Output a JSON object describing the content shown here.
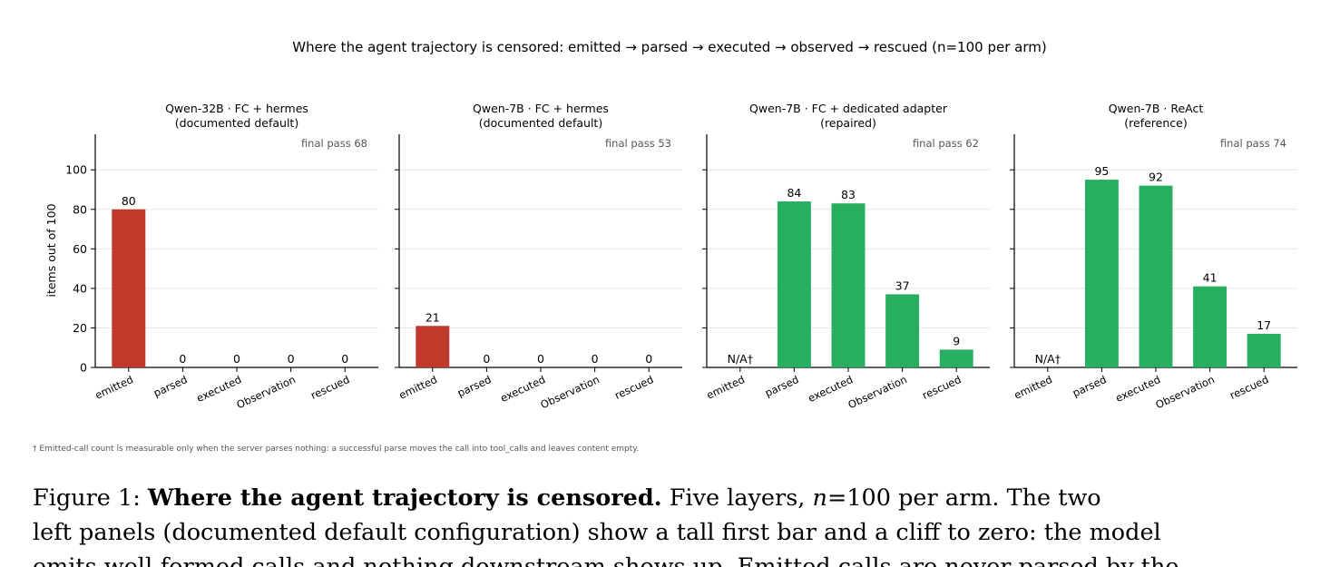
{
  "figure": {
    "suptitle": "Where the agent trajectory is censored: emitted → parsed → executed → observed → rescued   (n=100 per arm)",
    "ylabel": "items out of 100",
    "footnote": "† Emitted-call count is measurable only when the server parses nothing: a successful parse moves the call into tool_calls and leaves content empty.",
    "colors": {
      "emitted_bar": "#c0392b",
      "downstream_bar": "#27ae60",
      "grid": "#e6e6e6",
      "note": "#555555"
    }
  },
  "chart_data": [
    {
      "type": "bar",
      "title": "Qwen-32B · FC + hermes",
      "subtitle": "(documented default)",
      "annotation": "final pass 68",
      "categories": [
        "emitted",
        "parsed",
        "executed",
        "Observation",
        "rescued"
      ],
      "values": [
        80,
        0,
        0,
        0,
        0
      ],
      "labels": [
        "80",
        "0",
        "0",
        "0",
        "0"
      ],
      "ylim": [
        0,
        118
      ],
      "yticks": [
        0,
        20,
        40,
        60,
        80,
        100
      ],
      "ylabel": "items out of 100",
      "grid": "horizontal"
    },
    {
      "type": "bar",
      "title": "Qwen-7B · FC + hermes",
      "subtitle": "(documented default)",
      "annotation": "final pass 53",
      "categories": [
        "emitted",
        "parsed",
        "executed",
        "Observation",
        "rescued"
      ],
      "values": [
        21,
        0,
        0,
        0,
        0
      ],
      "labels": [
        "21",
        "0",
        "0",
        "0",
        "0"
      ],
      "ylim": [
        0,
        118
      ],
      "yticks": [
        0,
        20,
        40,
        60,
        80,
        100
      ],
      "grid": "horizontal"
    },
    {
      "type": "bar",
      "title": "Qwen-7B · FC + dedicated adapter",
      "subtitle": "(repaired)",
      "annotation": "final pass 62",
      "categories": [
        "emitted",
        "parsed",
        "executed",
        "Observation",
        "rescued"
      ],
      "values": [
        null,
        84,
        83,
        37,
        9
      ],
      "labels": [
        "N/A†",
        "84",
        "83",
        "37",
        "9"
      ],
      "ylim": [
        0,
        118
      ],
      "yticks": [
        0,
        20,
        40,
        60,
        80,
        100
      ],
      "grid": "horizontal"
    },
    {
      "type": "bar",
      "title": "Qwen-7B · ReAct",
      "subtitle": "(reference)",
      "annotation": "final pass 74",
      "categories": [
        "emitted",
        "parsed",
        "executed",
        "Observation",
        "rescued"
      ],
      "values": [
        null,
        95,
        92,
        41,
        17
      ],
      "labels": [
        "N/A†",
        "95",
        "92",
        "41",
        "17"
      ],
      "ylim": [
        0,
        118
      ],
      "yticks": [
        0,
        20,
        40,
        60,
        80,
        100
      ],
      "grid": "horizontal"
    }
  ],
  "caption": {
    "label": "Figure 1:",
    "bold": "Where the agent trajectory is censored.",
    "rest1_a": "Five layers,",
    "rest1_n": "n",
    "rest1_b": "=100 per arm.  The two",
    "line2": "left panels (documented default configuration) show a tall first bar and a cliff to zero: the model",
    "line3": "emits well-formed calls and nothing downstream shows up. Emitted calls are never parsed by the"
  }
}
